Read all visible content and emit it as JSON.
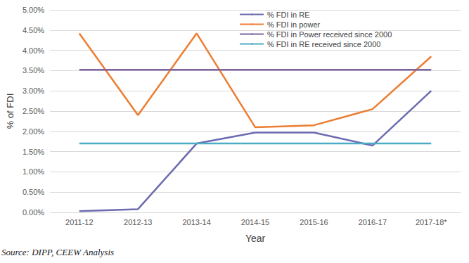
{
  "chart_data": {
    "type": "line",
    "x_label": "Year",
    "y_label": "% of FDI",
    "source": "Source: DIPP, CEEW Analysis",
    "categories": [
      "2011-12",
      "2012-13",
      "2013-14",
      "2014-15",
      "2015-16",
      "2016-17",
      "2017-18*"
    ],
    "series": [
      {
        "name": "% FDI in RE",
        "color": "#6b6bb0",
        "values": [
          0.03,
          0.08,
          1.7,
          1.97,
          1.97,
          1.65,
          3.0
        ]
      },
      {
        "name": "% FDI in power",
        "color": "#ed7d31",
        "values": [
          4.42,
          2.4,
          4.42,
          2.1,
          2.15,
          2.55,
          3.85
        ]
      },
      {
        "name": "% FDI in Power received since 2000",
        "color": "#8064a2",
        "values": [
          3.52,
          3.52,
          3.52,
          3.52,
          3.52,
          3.52,
          3.52
        ]
      },
      {
        "name": "% FDI in RE received since 2000",
        "color": "#4bacc6",
        "values": [
          1.7,
          1.7,
          1.7,
          1.7,
          1.7,
          1.7,
          1.7
        ]
      }
    ],
    "ylim": [
      0,
      5
    ],
    "yticks": [
      {
        "value": 0,
        "label": "0.00%"
      },
      {
        "value": 0.5,
        "label": "0.50%"
      },
      {
        "value": 1,
        "label": "1.00%"
      },
      {
        "value": 1.5,
        "label": "1.50%"
      },
      {
        "value": 2,
        "label": "2.00%"
      },
      {
        "value": 2.5,
        "label": "2.50%"
      },
      {
        "value": 3,
        "label": "3.00%"
      },
      {
        "value": 3.5,
        "label": "3.50%"
      },
      {
        "value": 4,
        "label": "4.00%"
      },
      {
        "value": 4.5,
        "label": "4.50%"
      },
      {
        "value": 5,
        "label": "5.00%"
      }
    ],
    "grid": true,
    "legend": "upper right",
    "marker": "none",
    "line_style": "solid"
  }
}
